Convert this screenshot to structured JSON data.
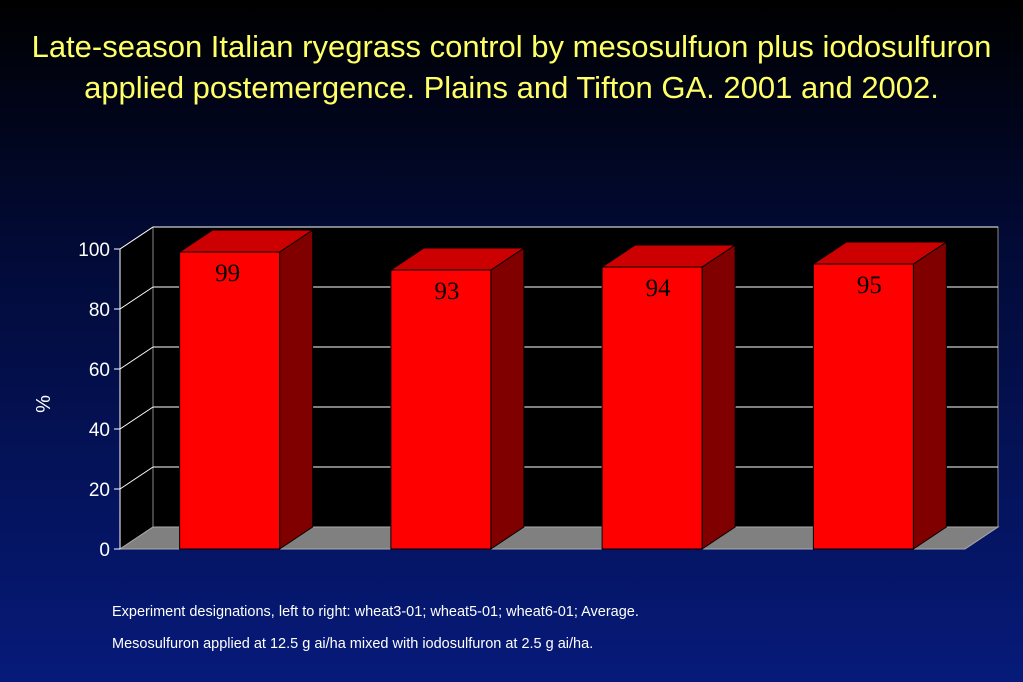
{
  "title": "Late-season Italian ryegrass control by mesosulfuon plus iodosulfuron applied postemergence.  Plains and Tifton GA. 2001 and 2002.",
  "chart_data": {
    "type": "bar",
    "categories": [
      "wheat3-01",
      "wheat5-01",
      "wheat6-01",
      "Average"
    ],
    "values": [
      99,
      93,
      94,
      95
    ],
    "data_labels": [
      "99",
      "93",
      "94",
      "95"
    ],
    "ylabel": "%",
    "ylim": [
      0,
      100
    ],
    "yticks": [
      "0",
      "20",
      "40",
      "60",
      "80",
      "100"
    ],
    "grid": true,
    "style_3d": true,
    "colors": {
      "bar_front": "#ff0000",
      "bar_side": "#800000",
      "bar_top": "#cc0000",
      "plot_background": "#000000",
      "floor": "#808080",
      "gridline": "#ffffff",
      "axis_text": "#ffffff",
      "data_label": "#000000"
    }
  },
  "notes": [
    "Experiment designations, left to right:  wheat3-01; wheat5-01; wheat6-01; Average.",
    "Mesosulfuron applied at 12.5 g ai/ha mixed with iodosulfuron at 2.5 g ai/ha."
  ]
}
